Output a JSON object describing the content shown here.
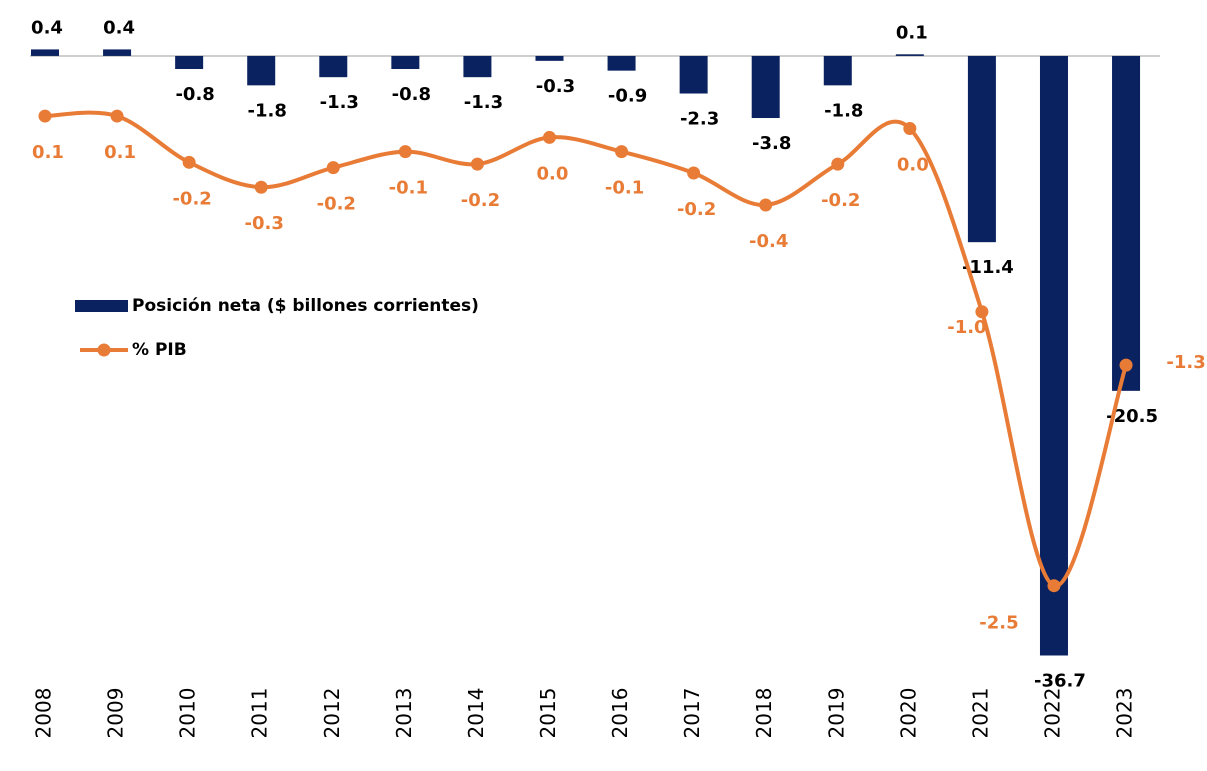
{
  "chart_data": {
    "type": "bar_line",
    "categories": [
      "2008",
      "2009",
      "2010",
      "2011",
      "2012",
      "2013",
      "2014",
      "2015",
      "2016",
      "2017",
      "2018",
      "2019",
      "2020",
      "2021",
      "2022",
      "2023"
    ],
    "series": [
      {
        "name": "Posición neta ($ billones corrientes)",
        "type": "bar",
        "color": "#0a2260",
        "values": [
          0.4,
          0.4,
          -0.8,
          -1.8,
          -1.3,
          -0.8,
          -1.3,
          -0.3,
          -0.9,
          -2.3,
          -3.8,
          -1.8,
          0.1,
          -11.4,
          -36.7,
          -20.5
        ]
      },
      {
        "name": "% PIB",
        "type": "line",
        "axis": "y2",
        "color": "#e87c37",
        "values": [
          0.1,
          0.1,
          -0.16,
          -0.3,
          -0.19,
          -0.1,
          -0.17,
          -0.02,
          -0.1,
          -0.22,
          -0.4,
          -0.17,
          0.03,
          -1.0,
          -2.54,
          -1.3
        ],
        "value_labels": [
          "0.1",
          "0.1",
          "-0.2",
          "-0.3",
          "-0.2",
          "-0.1",
          "-0.2",
          "0.0",
          "-0.1",
          "-0.2",
          "-0.4",
          "-0.2",
          "0.0",
          "-1.0",
          "-2.5",
          "-1.3"
        ]
      }
    ],
    "ylim": [
      -38.2,
      2.2
    ],
    "y2lim": [
      -3.07,
      0.64
    ],
    "legend": "left"
  }
}
